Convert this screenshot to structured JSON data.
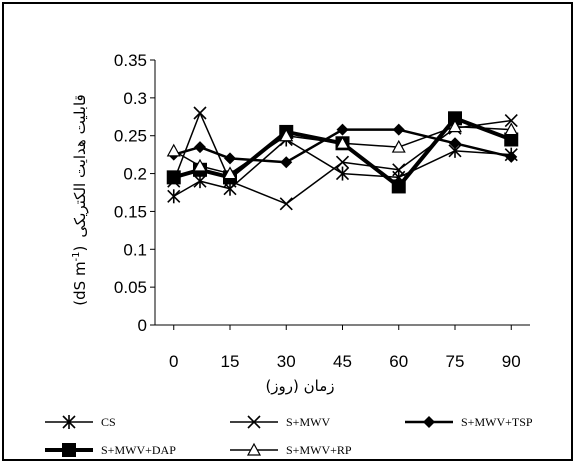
{
  "chart_data": {
    "type": "line",
    "title": "",
    "xlabel": "زمان (روز)",
    "ylabel_text": "قابلیت هدایت الکتریکی",
    "ylabel_unit": "(dS m",
    "ylabel_sup": "-1",
    "ylabel_close": ")",
    "x": [
      0,
      7,
      15,
      30,
      45,
      60,
      75,
      90
    ],
    "xticks": [
      0,
      15,
      30,
      45,
      60,
      75,
      90
    ],
    "xlim": [
      -5,
      95
    ],
    "yticks": [
      0,
      0.05,
      0.1,
      0.15,
      0.2,
      0.25,
      0.3,
      0.35
    ],
    "ytick_labels": [
      "0",
      "0.05",
      "0.1",
      "0.15",
      "0.2",
      "0.25",
      "0.3",
      "0.35"
    ],
    "ylim": [
      0,
      0.35
    ],
    "grid": false,
    "legend_position": "bottom",
    "series": [
      {
        "name": "CS",
        "marker": "asterisk",
        "values": [
          0.17,
          0.19,
          0.18,
          0.245,
          0.2,
          0.195,
          0.23,
          0.225
        ]
      },
      {
        "name": "S+MWV",
        "marker": "x",
        "values": [
          0.19,
          0.28,
          0.19,
          0.16,
          0.215,
          0.205,
          0.26,
          0.27
        ]
      },
      {
        "name": "S+MWV+TSP",
        "marker": "diamond",
        "values": [
          0.225,
          0.235,
          0.22,
          0.215,
          0.258,
          0.258,
          0.24,
          0.222
        ]
      },
      {
        "name": "S+MWV+DAP",
        "marker": "square",
        "values": [
          0.195,
          0.205,
          0.195,
          0.255,
          0.24,
          0.183,
          0.273,
          0.245
        ]
      },
      {
        "name": "S+MWV+RP",
        "marker": "triangle",
        "values": [
          0.23,
          0.21,
          0.2,
          0.25,
          0.24,
          0.235,
          0.262,
          0.258
        ]
      }
    ]
  }
}
